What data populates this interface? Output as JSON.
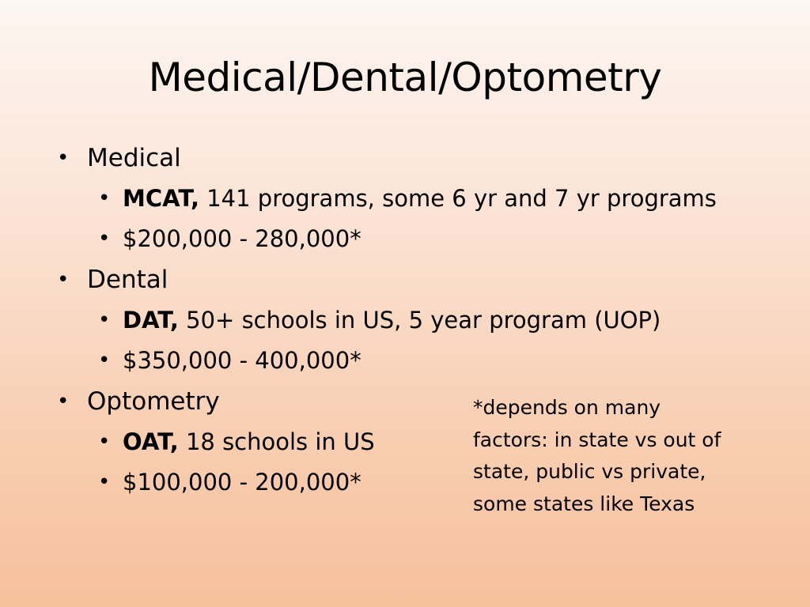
{
  "slide": {
    "title": "Medical/Dental/Optometry",
    "sections": [
      {
        "label": "Medical",
        "subitems": [
          {
            "bold": "MCAT,",
            "text": " 141 programs, some 6 yr and 7 yr programs"
          },
          {
            "bold": "",
            "text": "$200,000 - 280,000*"
          }
        ]
      },
      {
        "label": "Dental",
        "subitems": [
          {
            "bold": "DAT,",
            "text": " 50+ schools in US, 5 year program (UOP)"
          },
          {
            "bold": "",
            "text": "$350,000 - 400,000*"
          }
        ]
      },
      {
        "label": "Optometry",
        "subitems": [
          {
            "bold": "OAT,",
            "text": " 18 schools in US"
          },
          {
            "bold": "",
            "text": "$100,000 - 200,000*"
          }
        ]
      }
    ],
    "footnote_lines": [
      "*depends on many",
      "factors: in state vs out of",
      "state, public vs private,",
      "some states like Texas"
    ],
    "bullet_glyph": "•"
  }
}
